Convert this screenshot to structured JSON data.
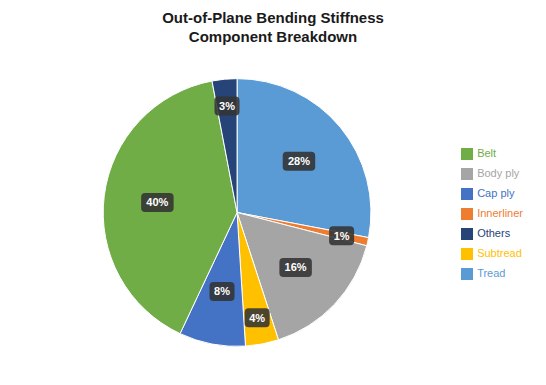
{
  "chart_data": {
    "type": "pie",
    "title": "Out-of-Plane Bending Stiffness\nComponent Breakdown",
    "categories": [
      "Tread",
      "Innerliner",
      "Body ply",
      "Subtread",
      "Cap ply",
      "Belt",
      "Others"
    ],
    "values": [
      28,
      1,
      16,
      4,
      8,
      40,
      3
    ],
    "value_labels": [
      "28%",
      "1%",
      "16%",
      "4%",
      "8%",
      "40%",
      "3%"
    ],
    "colors": [
      "#5b9bd5",
      "#ed7d31",
      "#a5a5a5",
      "#ffc000",
      "#4472c4",
      "#70ad47",
      "#264478"
    ],
    "data_labels": true,
    "legend": "right"
  }
}
